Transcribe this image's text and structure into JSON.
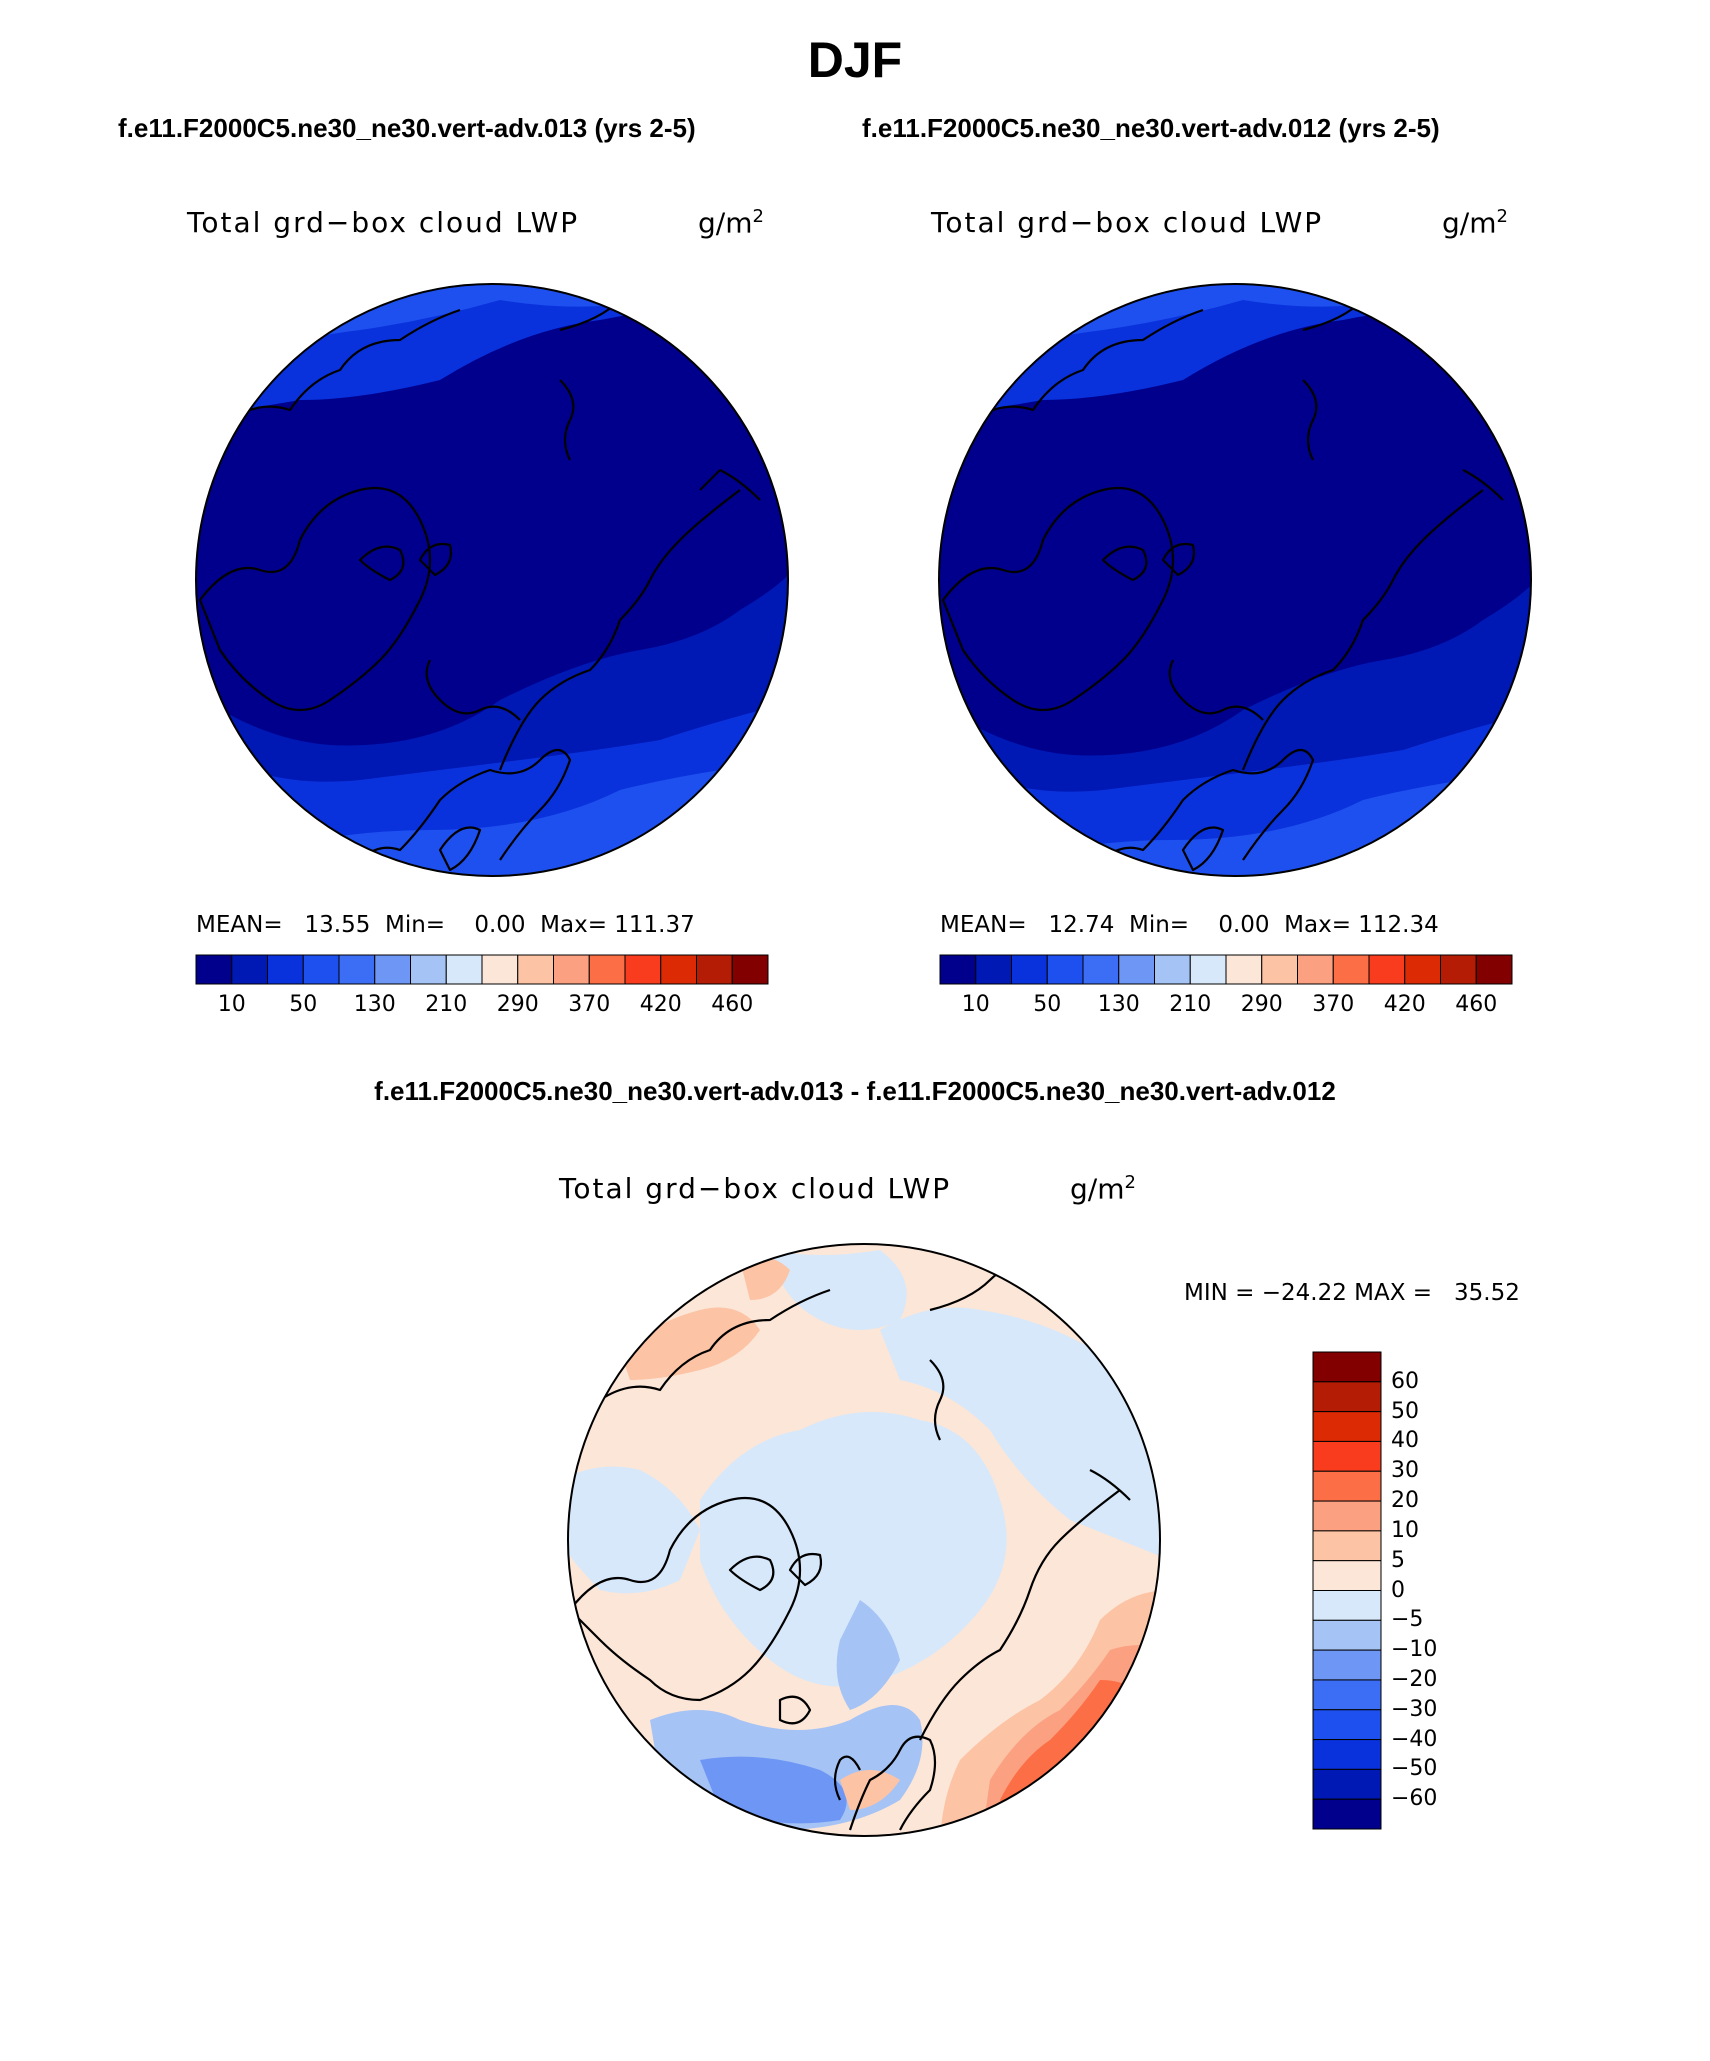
{
  "figure": {
    "season": "DJF",
    "case_left": "f.e11.F2000C5.ne30_ne30.vert-adv.013 (yrs 2-5)",
    "case_right": "f.e11.F2000C5.ne30_ne30.vert-adv.012 (yrs 2-5)",
    "difference_title": "f.e11.F2000C5.ne30_ne30.vert-adv.013 - f.e11.F2000C5.ne30_ne30.vert-adv.012"
  },
  "panels": [
    {
      "variable": "Total grd−box cloud LWP",
      "units": "g/m",
      "units_exp": "2",
      "stats": "MEAN=   13.55  Min=    0.00  Max= 111.37"
    },
    {
      "variable": "Total grd−box cloud LWP",
      "units": "g/m",
      "units_exp": "2",
      "stats": "MEAN=   12.74  Min=    0.00  Max= 112.34"
    }
  ],
  "diff_panel": {
    "variable": "Total grd−box cloud LWP",
    "units": "g/m",
    "units_exp": "2",
    "stats": "MIN = −24.22 MAX =   35.52"
  },
  "abs_colorbar": {
    "colors": [
      "#00008c",
      "#0018b4",
      "#0a32dc",
      "#1e50f0",
      "#3c6ef5",
      "#6e96f5",
      "#a5c3f5",
      "#d7e8fa",
      "#fce6d7",
      "#fcc3a5",
      "#fca082",
      "#fc6e46",
      "#fa3c1e",
      "#dc2a05",
      "#b41c05",
      "#820000"
    ],
    "tick_labels": [
      "10",
      "50",
      "130",
      "210",
      "290",
      "370",
      "420",
      "460"
    ]
  },
  "diff_colorbar": {
    "colors_top_to_bottom": [
      "#820000",
      "#b41c05",
      "#dc2a05",
      "#fa3c1e",
      "#fc6e46",
      "#fca082",
      "#fcc3a5",
      "#fce6d7",
      "#d7e8fa",
      "#a5c3f5",
      "#6e96f5",
      "#3c6ef5",
      "#1e50f0",
      "#0a32dc",
      "#0018b4",
      "#00008c"
    ],
    "tick_labels": [
      "60",
      "50",
      "40",
      "30",
      "20",
      "10",
      "5",
      "0",
      "−5",
      "−10",
      "−20",
      "−30",
      "−40",
      "−50",
      "−60"
    ]
  }
}
